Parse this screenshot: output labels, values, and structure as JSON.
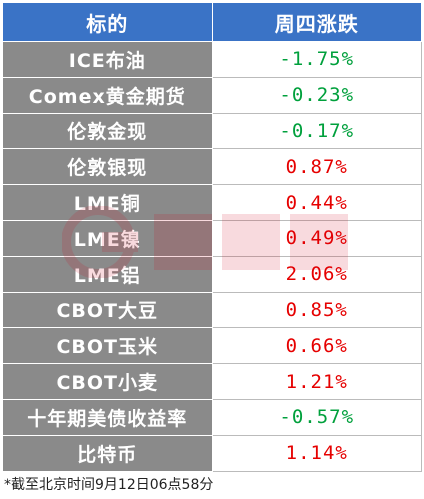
{
  "header": {
    "col_name": "标的",
    "col_change": "周四涨跌"
  },
  "rows": [
    {
      "name": "ICE布油",
      "change": "-1.75%",
      "dir": "down"
    },
    {
      "name": "Comex黄金期货",
      "change": "-0.23%",
      "dir": "down"
    },
    {
      "name": "伦敦金现",
      "change": "-0.17%",
      "dir": "down"
    },
    {
      "name": "伦敦银现",
      "change": "0.87%",
      "dir": "up"
    },
    {
      "name": "LME铜",
      "change": "0.44%",
      "dir": "up"
    },
    {
      "name": "LME镍",
      "change": "0.49%",
      "dir": "up"
    },
    {
      "name": "LME铝",
      "change": "2.06%",
      "dir": "up"
    },
    {
      "name": "CBOT大豆",
      "change": "0.85%",
      "dir": "up"
    },
    {
      "name": "CBOT玉米",
      "change": "0.66%",
      "dir": "up"
    },
    {
      "name": "CBOT小麦",
      "change": "1.21%",
      "dir": "up"
    },
    {
      "name": "十年期美债收益率",
      "change": "-0.57%",
      "dir": "down"
    },
    {
      "name": "比特币",
      "change": "1.14%",
      "dir": "up"
    }
  ],
  "footnote": "*截至北京时间9月12日06点58分",
  "colors": {
    "header_bg": "#3a73c6",
    "name_bg": "#8a8a8a",
    "up": "#e60000",
    "down": "#00a03c"
  }
}
